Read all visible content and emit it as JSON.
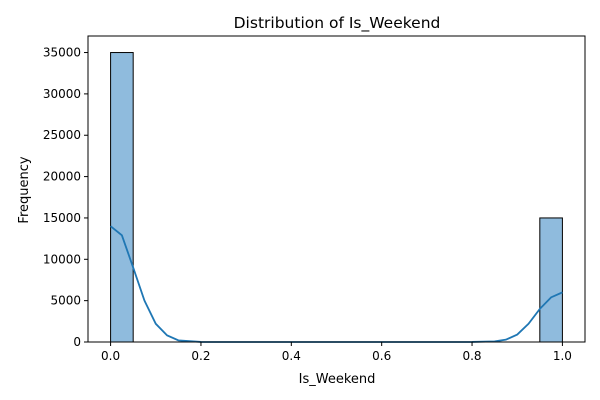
{
  "chart_data": {
    "type": "bar",
    "title": "Distribution of Is_Weekend",
    "xlabel": "Is_Weekend",
    "ylabel": "Frequency",
    "xlim": [
      -0.05,
      1.05
    ],
    "ylim": [
      0,
      37000
    ],
    "x_ticks": [
      0.0,
      0.2,
      0.4,
      0.6,
      0.8,
      1.0
    ],
    "x_tick_labels": [
      "0.0",
      "0.2",
      "0.4",
      "0.6",
      "0.8",
      "1.0"
    ],
    "y_ticks": [
      0,
      5000,
      10000,
      15000,
      20000,
      25000,
      30000,
      35000
    ],
    "y_tick_labels": [
      "0",
      "5000",
      "10000",
      "15000",
      "20000",
      "25000",
      "30000",
      "35000"
    ],
    "bins": [
      {
        "x0": 0.0,
        "x1": 0.05,
        "value": 35000
      },
      {
        "x0": 0.95,
        "x1": 1.0,
        "value": 15000
      }
    ],
    "kde": {
      "x": [
        0.0,
        0.025,
        0.05,
        0.075,
        0.1,
        0.125,
        0.15,
        0.2,
        0.3,
        0.5,
        0.7,
        0.8,
        0.85,
        0.875,
        0.9,
        0.925,
        0.95,
        0.975,
        1.0
      ],
      "y": [
        14000,
        12900,
        9000,
        5000,
        2200,
        800,
        200,
        10,
        0,
        0,
        0,
        10,
        80,
        280,
        900,
        2200,
        4000,
        5400,
        6000
      ]
    },
    "bar_fill": "#8fbbdd",
    "bar_stroke": "#000000",
    "kde_color": "#1f77b4",
    "grid": false
  }
}
